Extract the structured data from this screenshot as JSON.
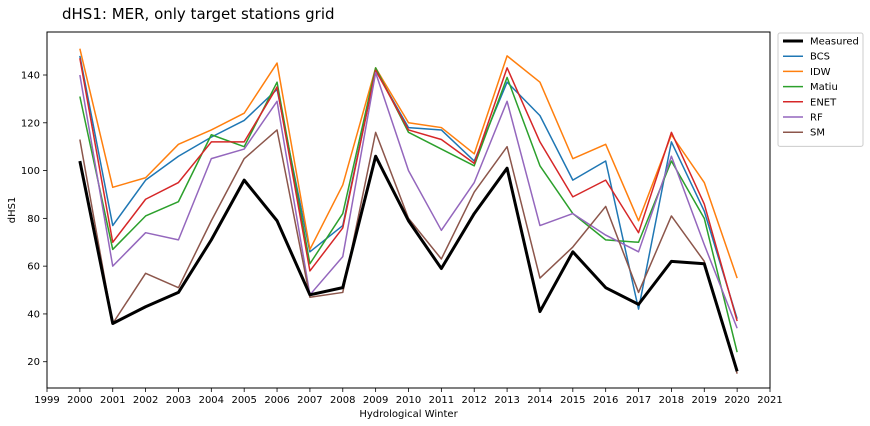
{
  "chart_data": {
    "type": "line",
    "title": "dHS1: MER, only target stations grid",
    "xlabel": "Hydrological Winter",
    "ylabel": "dHS1",
    "xlim": [
      1999,
      2021
    ],
    "ylim": [
      9,
      158
    ],
    "x_ticks": [
      1999,
      2000,
      2001,
      2002,
      2003,
      2004,
      2005,
      2006,
      2007,
      2008,
      2009,
      2010,
      2011,
      2012,
      2013,
      2014,
      2015,
      2016,
      2017,
      2018,
      2019,
      2020,
      2021
    ],
    "y_ticks": [
      20,
      40,
      60,
      80,
      100,
      120,
      140
    ],
    "grid": false,
    "legend_position": "outside-right-top",
    "x": [
      2000,
      2001,
      2002,
      2003,
      2004,
      2005,
      2006,
      2007,
      2008,
      2009,
      2010,
      2011,
      2012,
      2013,
      2014,
      2015,
      2016,
      2017,
      2018,
      2019,
      2020
    ],
    "series": [
      {
        "name": "Measured",
        "color": "#000000",
        "width": 3,
        "values": [
          104,
          36,
          43,
          49,
          71,
          96,
          79,
          48,
          51,
          106,
          79,
          59,
          82,
          101,
          41,
          66,
          51,
          44,
          62,
          61,
          16
        ]
      },
      {
        "name": "BCS",
        "color": "#1f77b4",
        "width": 1.5,
        "values": [
          148,
          77,
          96,
          106,
          114,
          121,
          134,
          66,
          77,
          142,
          118,
          117,
          104,
          137,
          123,
          96,
          104,
          42,
          112,
          83,
          38
        ]
      },
      {
        "name": "IDW",
        "color": "#ff7f0e",
        "width": 1.5,
        "values": [
          151,
          93,
          97,
          111,
          117,
          124,
          145,
          67,
          94,
          143,
          120,
          118,
          107,
          148,
          137,
          105,
          111,
          79,
          115,
          95,
          55
        ]
      },
      {
        "name": "Matiu",
        "color": "#2ca02c",
        "width": 1.5,
        "values": [
          131,
          67,
          81,
          87,
          115,
          110,
          137,
          61,
          82,
          143,
          116,
          109,
          102,
          139,
          102,
          82,
          71,
          70,
          104,
          80,
          24
        ]
      },
      {
        "name": "ENET",
        "color": "#d62728",
        "width": 1.5,
        "values": [
          147,
          70,
          88,
          95,
          112,
          112,
          135,
          58,
          76,
          142,
          117,
          113,
          103,
          143,
          112,
          89,
          96,
          74,
          116,
          86,
          37
        ]
      },
      {
        "name": "RF",
        "color": "#9467bd",
        "width": 1.5,
        "values": [
          140,
          60,
          74,
          71,
          105,
          109,
          129,
          48,
          64,
          141,
          100,
          75,
          95,
          129,
          77,
          82,
          73,
          66,
          106,
          69,
          34
        ]
      },
      {
        "name": "SM",
        "color": "#8c564b",
        "width": 1.5,
        "values": [
          113,
          36,
          57,
          51,
          79,
          105,
          117,
          47,
          49,
          116,
          80,
          63,
          91,
          110,
          55,
          68,
          85,
          49,
          81,
          62,
          15
        ]
      }
    ]
  }
}
